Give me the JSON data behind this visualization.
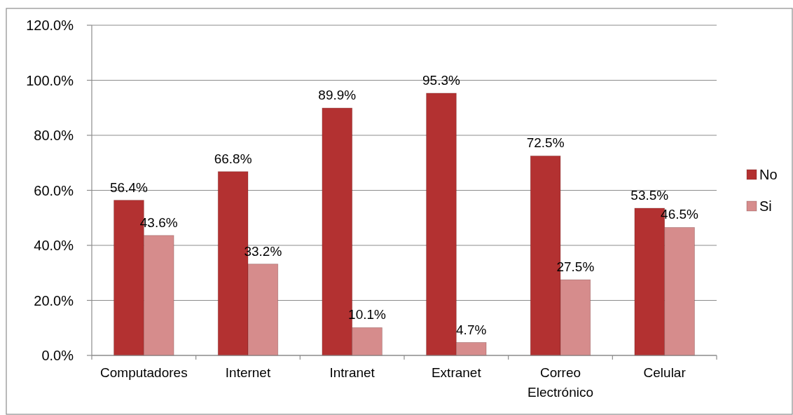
{
  "chart_data": {
    "type": "bar",
    "categories": [
      "Computadores",
      "Internet",
      "Intranet",
      "Extranet",
      "Correo Electrónico",
      "Celular"
    ],
    "series": [
      {
        "name": "No",
        "color": "#b33131",
        "values": [
          56.4,
          66.8,
          89.9,
          95.3,
          72.5,
          53.5
        ],
        "value_labels": [
          "56.4%",
          "66.8%",
          "89.9%",
          "95.3%",
          "72.5%",
          "53.5%"
        ]
      },
      {
        "name": "Si",
        "color": "#d68c8c",
        "values": [
          43.6,
          33.2,
          10.1,
          4.7,
          27.5,
          46.5
        ],
        "value_labels": [
          "43.6%",
          "33.2%",
          "10.1%",
          "4.7%",
          "27.5%",
          "46.5%"
        ]
      }
    ],
    "ylim": [
      0,
      120
    ],
    "yticks": [
      {
        "value": 0,
        "label": "0.0%"
      },
      {
        "value": 20,
        "label": "20.0%"
      },
      {
        "value": 40,
        "label": "40.0%"
      },
      {
        "value": 60,
        "label": "60.0%"
      },
      {
        "value": 80,
        "label": "80.0%"
      },
      {
        "value": 100,
        "label": "100.0%"
      },
      {
        "value": 120,
        "label": "120.0%"
      }
    ],
    "grid": "y",
    "legend": "right"
  }
}
